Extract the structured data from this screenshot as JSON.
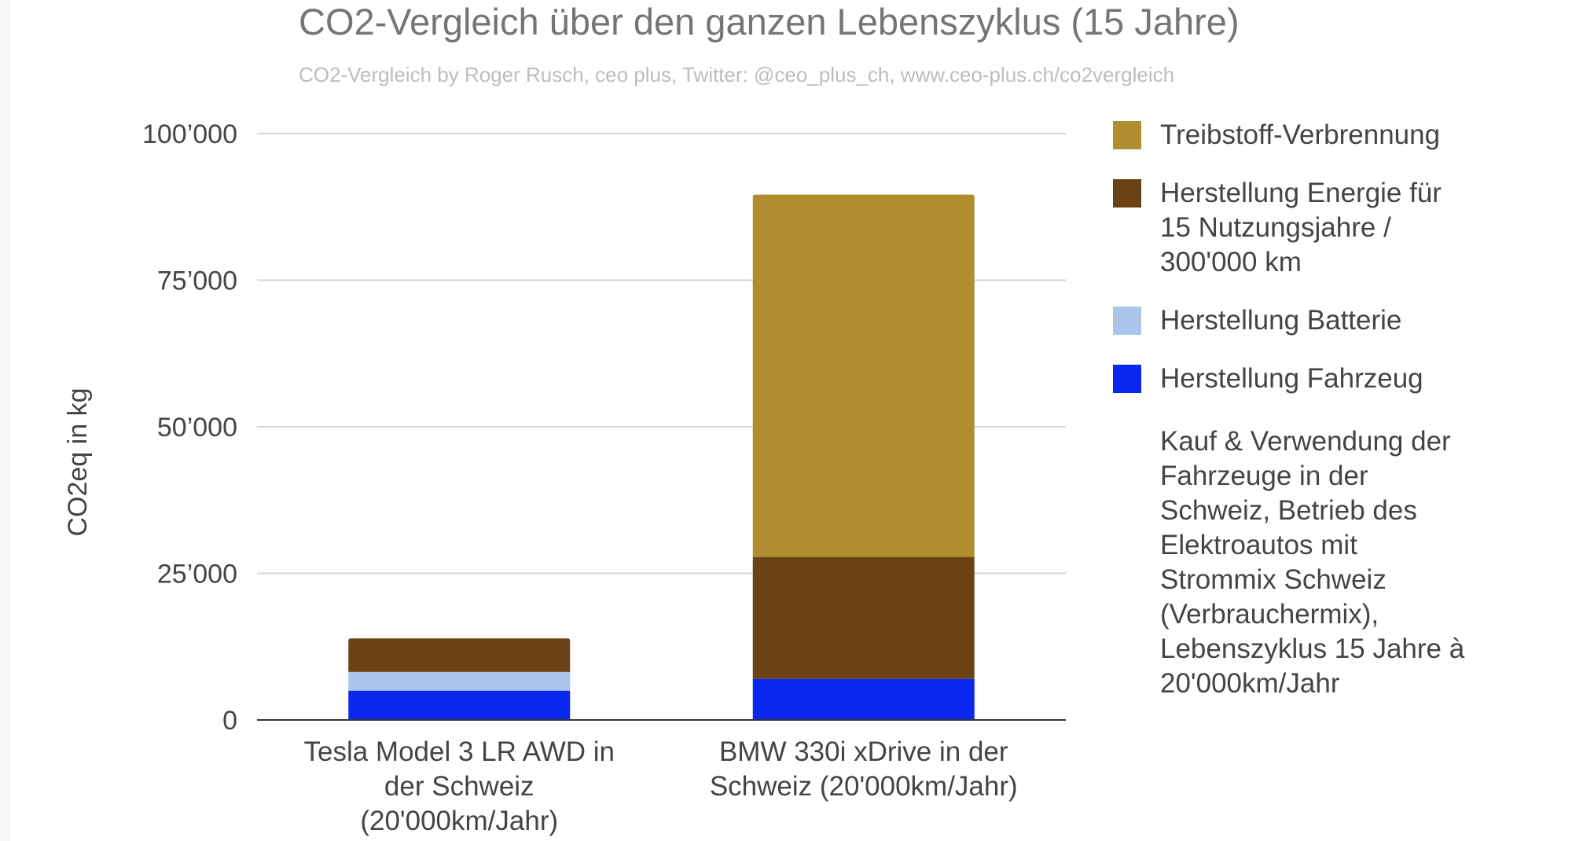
{
  "chart_data": {
    "type": "bar",
    "stacked": true,
    "title": "CO2-Vergleich über den ganzen Lebenszyklus (15 Jahre)",
    "subtitle": "CO2-Vergleich by Roger Rusch, ceo plus, Twitter: @ceo_plus_ch, www.ceo-plus.ch/co2vergleich",
    "ylabel": "CO2eq in kg",
    "xlabel": "",
    "ylim": [
      0,
      100000
    ],
    "yticks": [
      0,
      25000,
      50000,
      75000,
      100000
    ],
    "ytick_labels": [
      "0",
      "25’000",
      "50’000",
      "75’000",
      "100’000"
    ],
    "grid": true,
    "legend_position": "right",
    "categories": [
      [
        "Tesla Model 3 LR AWD in",
        "der Schweiz",
        "(20'000km/Jahr)"
      ],
      [
        "BMW 330i xDrive in der",
        "Schweiz (20'000km/Jahr)"
      ]
    ],
    "series": [
      {
        "name": "Herstellung Fahrzeug",
        "color": "#0a28f0",
        "values": [
          5000,
          7000
        ]
      },
      {
        "name": "Herstellung Batterie",
        "color": "#aac6ec",
        "values": [
          3200,
          0
        ]
      },
      {
        "name": "Herstellung Energie für 15 Nutzungsjahre / 300'000 km",
        "color": "#6b4214",
        "values": [
          5700,
          20800
        ]
      },
      {
        "name": "Treibstoff-Verbrennung",
        "color": "#b08d2f",
        "values": [
          0,
          61800
        ]
      }
    ],
    "legend": [
      {
        "series": "Treibstoff-Verbrennung",
        "lines": [
          "Treibstoff-Verbrennung"
        ]
      },
      {
        "series": "Herstellung Energie für 15 Nutzungsjahre / 300'000 km",
        "lines": [
          "Herstellung Energie für",
          "15 Nutzungsjahre /",
          "300'000 km"
        ]
      },
      {
        "series": "Herstellung Batterie",
        "lines": [
          "Herstellung Batterie"
        ]
      },
      {
        "series": "Herstellung Fahrzeug",
        "lines": [
          "Herstellung Fahrzeug"
        ]
      }
    ],
    "annotation": [
      "Kauf & Verwendung der",
      "Fahrzeuge in der",
      "Schweiz, Betrieb des",
      "Elektroautos mit",
      "Strommix Schweiz",
      "(Verbrauchermix),",
      "Lebenszyklus 15 Jahre à",
      "20'000km/Jahr"
    ]
  }
}
